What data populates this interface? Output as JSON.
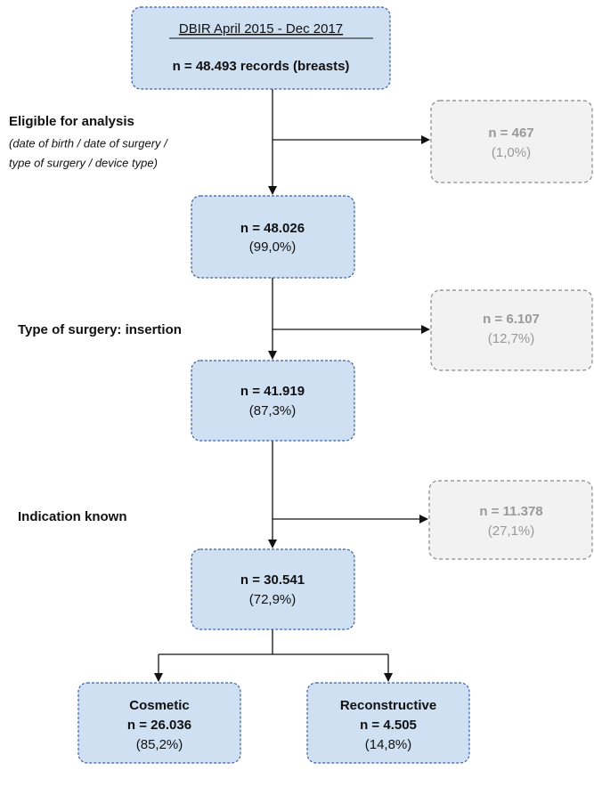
{
  "source": {
    "title": "DBIR April 2015 - Dec 2017",
    "count": "n = 48.493 records (breasts)"
  },
  "criteria": [
    {
      "label": "Eligible for analysis",
      "note": [
        "(date of birth / date of surgery /",
        "type of surgery / device type)"
      ],
      "excluded": {
        "count": "n = 467",
        "percent": "(1,0%)"
      },
      "included": {
        "count": "n = 48.026",
        "percent": "(99,0%)"
      }
    },
    {
      "label": "Type of surgery: insertion",
      "excluded": {
        "count": "n = 6.107",
        "percent": "(12,7%)"
      },
      "included": {
        "count": "n = 41.919",
        "percent": "(87,3%)"
      }
    },
    {
      "label": "Indication known",
      "excluded": {
        "count": "n = 11.378",
        "percent": "(27,1%)"
      },
      "included": {
        "count": "n = 30.541",
        "percent": "(72,9%)"
      }
    }
  ],
  "groups": [
    {
      "label": "Cosmetic",
      "count": "n = 26.036",
      "percent": "(85,2%)"
    },
    {
      "label": "Reconstructive",
      "count": "n = 4.505",
      "percent": "(14,8%)"
    }
  ]
}
